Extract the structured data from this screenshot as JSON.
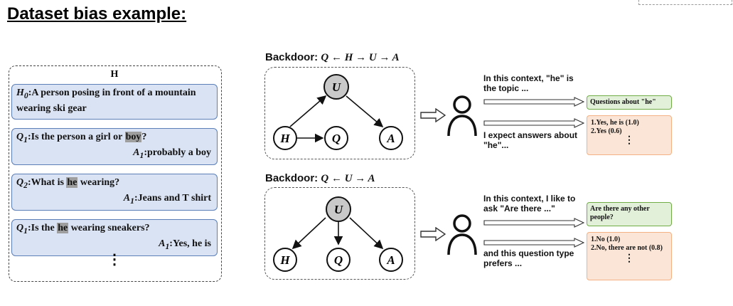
{
  "title": "Dataset bias example:",
  "history": {
    "header": "H",
    "cards": [
      {
        "q_pre": "A person posing in front of a mountain wearing ski gear",
        "q_label": "H",
        "q_sub": "0"
      },
      {
        "q_label": "Q",
        "q_sub": "1",
        "q_pre": "Is the person a girl or ",
        "q_hl": "boy",
        "q_post": "?",
        "a_label": "A",
        "a_sub": "1",
        "a_text": "probably a boy"
      },
      {
        "q_label": "Q",
        "q_sub": "2",
        "q_pre": "What is ",
        "q_hl": "he",
        "q_post": " wearing?",
        "a_label": "A",
        "a_sub": "1",
        "a_text": "Jeans and T shirt"
      },
      {
        "q_label": "Q",
        "q_sub": "1",
        "q_pre": "Is the ",
        "q_hl": "he",
        "q_post": " wearing sneakers?",
        "a_label": "A",
        "a_sub": "1",
        "a_text": "Yes, he is"
      }
    ],
    "ellipsis": "⋮"
  },
  "backdoor1": {
    "title_prefix": "Backdoor: ",
    "formula": "Q ← H → U → A",
    "nodes": {
      "U": "U",
      "H": "H",
      "Q": "Q",
      "A": "A"
    },
    "context_top": "In this context, \"he\" is the topic ...",
    "context_bottom": "I expect answers about \"he\"...",
    "question_box": "Questions about \"he\"",
    "answers": [
      "1.Yes, he is (1.0)",
      "2.Yes (0.6)"
    ],
    "answers_ellipsis": "⋮"
  },
  "backdoor2": {
    "title_prefix": "Backdoor: ",
    "formula": "Q ← U → A",
    "nodes": {
      "U": "U",
      "H": "H",
      "Q": "Q",
      "A": "A"
    },
    "context_top": "In this context, I like to ask \"Are there ...\"",
    "context_bottom": "and this question type prefers ...",
    "question_box": "Are there any other people?",
    "answers": [
      "1.No (1.0)",
      "2.No, there are not (0.8)"
    ],
    "answers_ellipsis": "⋮"
  },
  "colors": {
    "history_fill": "#dae3f3",
    "history_border": "#5b7fb6",
    "question_fill": "#e2efd9",
    "question_border": "#70ad47",
    "answer_fill": "#fbe5d6",
    "answer_border": "#f4b183",
    "confounder_fill": "#c9c9c9"
  },
  "icons": [
    "person-icon",
    "hollow-arrow-icon"
  ]
}
